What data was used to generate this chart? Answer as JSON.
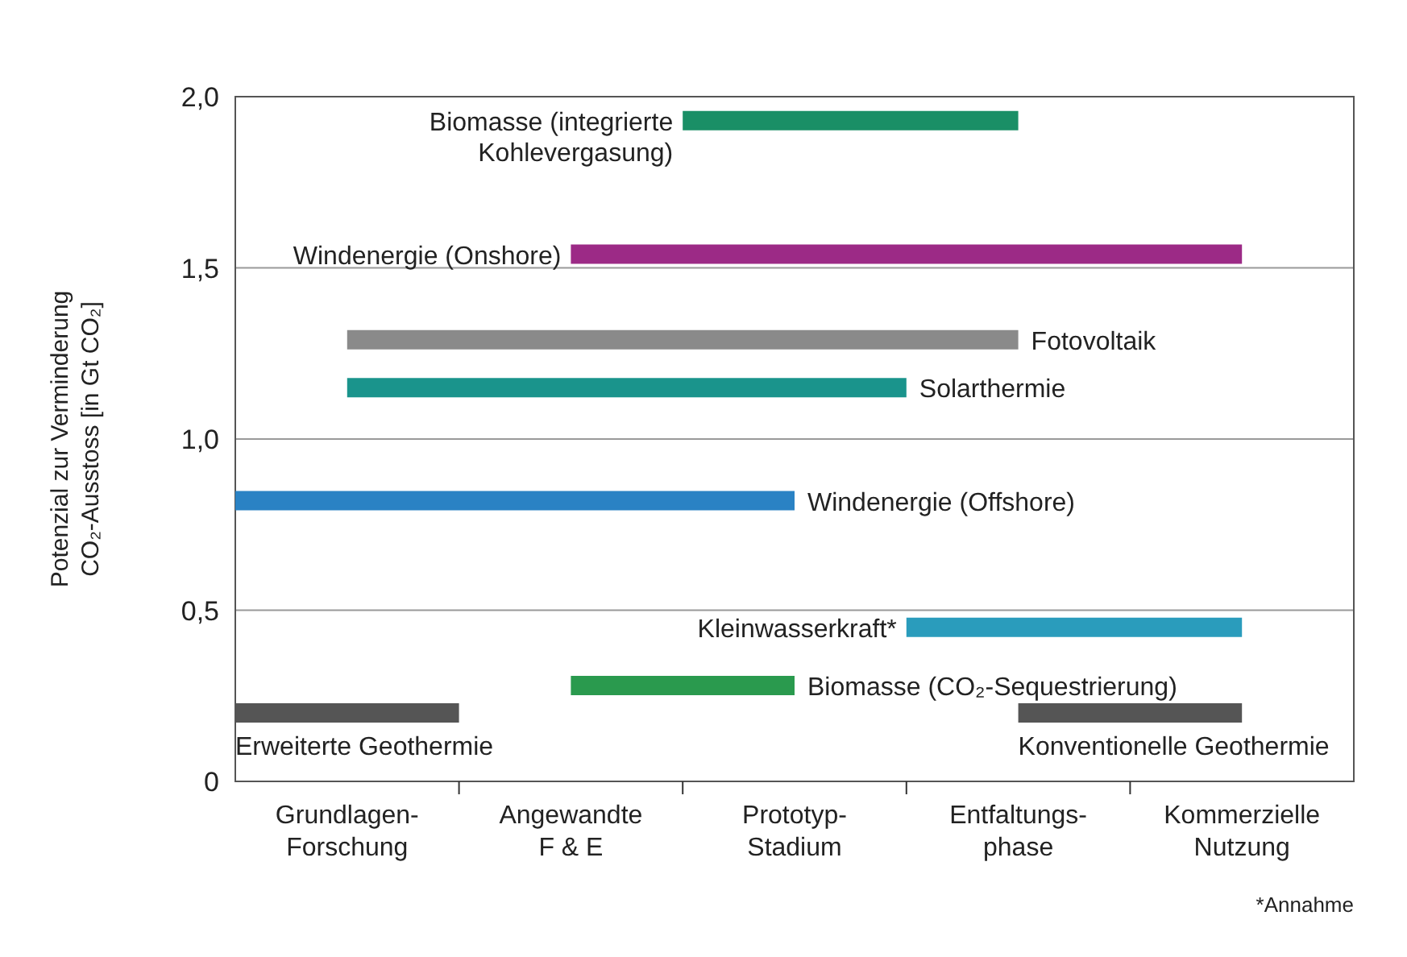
{
  "chart_data": {
    "type": "line",
    "ylabel": "Potenzial zur Verminderung\nCO₂-Ausstoss [in Gt CO₂]",
    "categories": [
      null,
      "Grundlagen-\nForschung",
      null,
      "Angewandte\nF & E",
      null,
      "Prototyp-\nStadium",
      null,
      "Entfaltungs-\nphase",
      null,
      "Kommerzielle\nNutzung",
      null
    ],
    "ylim": [
      0,
      2
    ],
    "yticks": [
      0,
      {
        "value": 0.5,
        "label": "0,5"
      },
      {
        "value": 1,
        "label": "1,0"
      },
      {
        "value": 1.5,
        "label": "1,5"
      },
      {
        "value": 2,
        "label": "2,0"
      }
    ],
    "grid": "y",
    "marker": "none",
    "line_style": "solid",
    "series": [
      {
        "name": "Biomasse (integrierte Kohlevergasung)",
        "color": "#1a8f66",
        "values": [
          null,
          null,
          null,
          null,
          1.93,
          1.93,
          1.93,
          1.93,
          null,
          null,
          null
        ]
      },
      {
        "name": "Windenergie (Onshore)",
        "color": "#9c2a86",
        "values": [
          null,
          null,
          null,
          1.54,
          1.54,
          1.54,
          1.54,
          1.54,
          1.54,
          1.54,
          null
        ]
      },
      {
        "name": "Fotovoltaik",
        "color": "#8a8a8a",
        "values": [
          null,
          1.29,
          1.29,
          1.29,
          1.29,
          1.29,
          1.29,
          1.29,
          null,
          null,
          null
        ]
      },
      {
        "name": "Solarthermie",
        "color": "#1a948c",
        "values": [
          null,
          1.15,
          1.15,
          1.15,
          1.15,
          1.15,
          1.15,
          null,
          null,
          null,
          null
        ]
      },
      {
        "name": "Windenergie (Offshore)",
        "color": "#2a82c4",
        "values": [
          0.82,
          0.82,
          0.82,
          0.82,
          0.82,
          0.82,
          null,
          null,
          null,
          null,
          null
        ]
      },
      {
        "name": "Kleinwasserkraft*",
        "color": "#2a9cbc",
        "values": [
          null,
          null,
          null,
          null,
          null,
          null,
          0.45,
          0.45,
          0.45,
          0.45,
          null
        ]
      },
      {
        "name": "Biomasse (CO₂-Sequestrierung)",
        "color": "#2a9a4e",
        "values": [
          null,
          null,
          null,
          0.28,
          0.28,
          0.28,
          null,
          null,
          null,
          null,
          null
        ]
      },
      {
        "name": "Erweiterte Geothermie",
        "color": "#555555",
        "values": [
          0.2,
          0.2,
          0.2,
          null,
          null,
          null,
          null,
          null,
          null,
          null,
          null
        ]
      },
      {
        "name": "Konventionelle Geothermie",
        "color": "#555555",
        "values": [
          null,
          null,
          null,
          null,
          null,
          null,
          null,
          0.2,
          0.2,
          0.2,
          null
        ]
      }
    ],
    "annotations": [
      "*Annahme"
    ]
  }
}
